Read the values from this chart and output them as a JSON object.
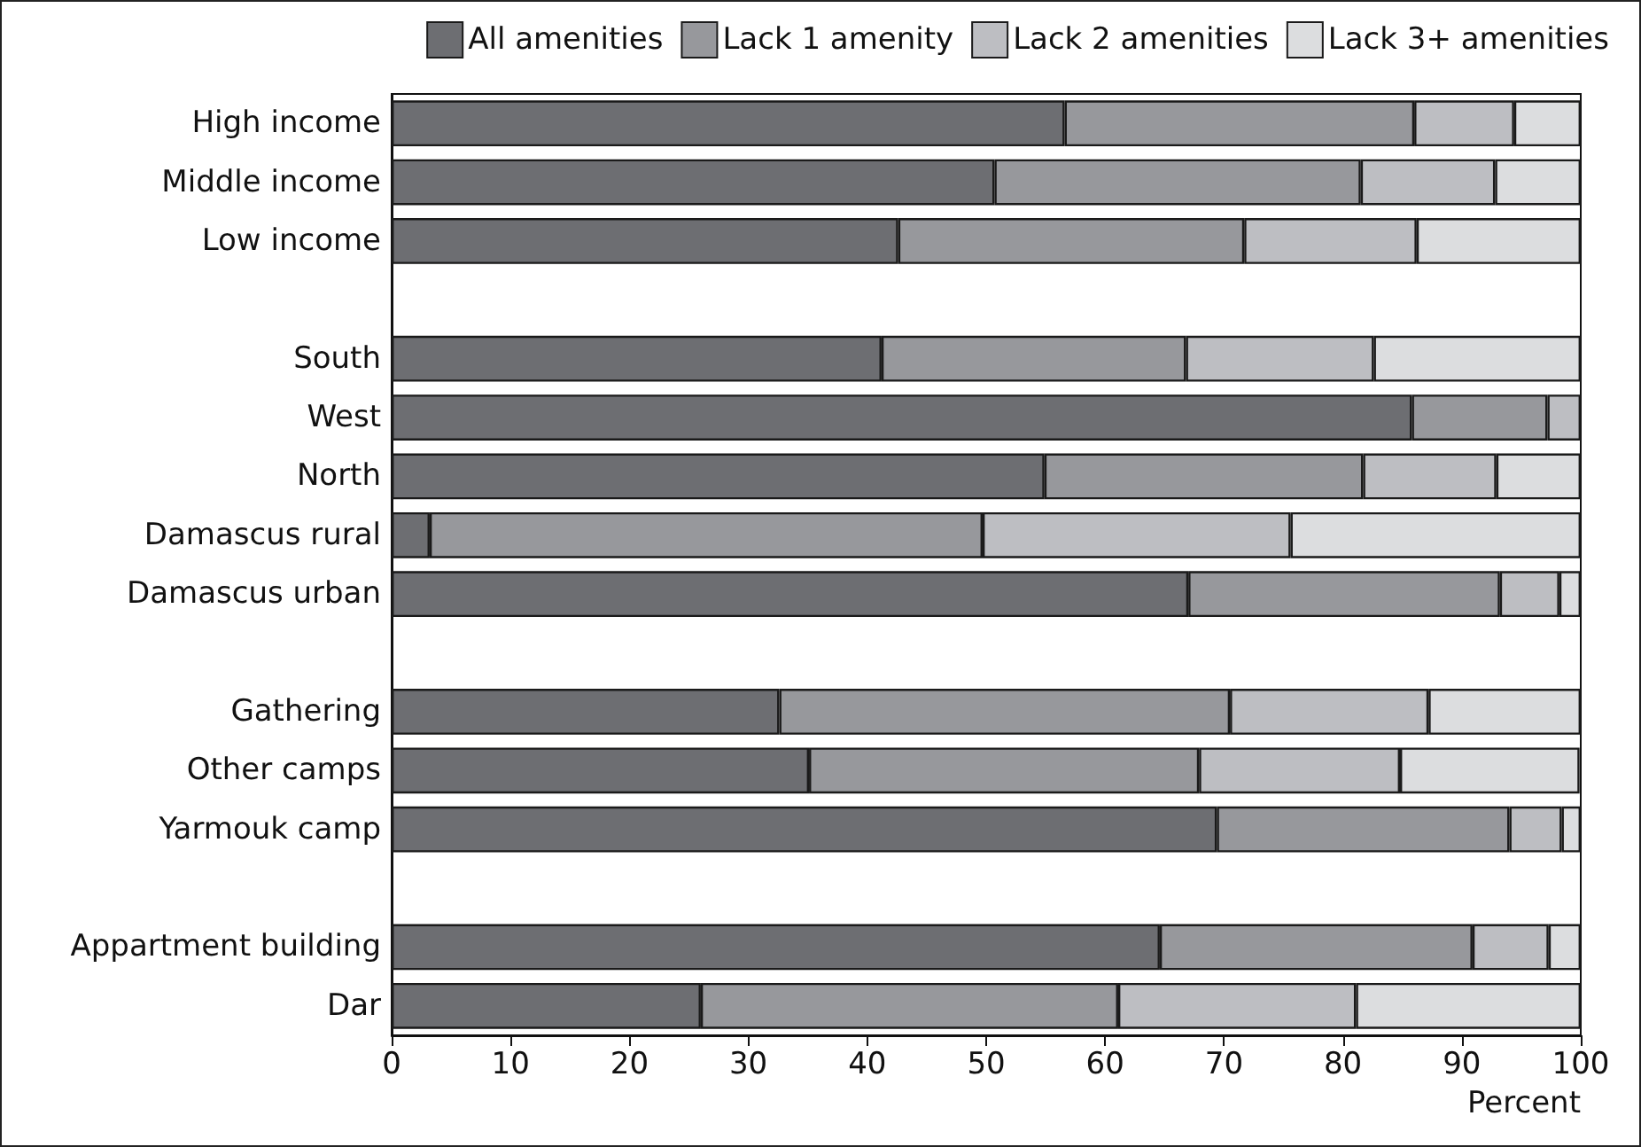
{
  "chart_data": {
    "type": "bar",
    "orientation": "horizontal",
    "stacked": true,
    "xlabel": "Percent",
    "categories": [
      "High income",
      "Middle income",
      "Low income",
      null,
      "South",
      "West",
      "North",
      "Damascus rural",
      "Damascus urban",
      null,
      "Gathering",
      "Other camps",
      "Yarmouk camp",
      null,
      "Appartment building",
      "Dar"
    ],
    "series": [
      {
        "name": "All amenities",
        "color": "#6d6e72",
        "values": [
          56.6,
          50.7,
          42.6,
          null,
          41.2,
          85.8,
          54.9,
          3.2,
          67.0,
          null,
          32.6,
          35.1,
          69.4,
          null,
          64.6,
          26.0
        ]
      },
      {
        "name": "Lack 1 amenity",
        "color": "#97989c",
        "values": [
          29.4,
          30.8,
          29.1,
          null,
          25.6,
          11.4,
          26.8,
          46.5,
          26.2,
          null,
          37.9,
          32.8,
          24.6,
          null,
          26.3,
          35.1
        ]
      },
      {
        "name": "Lack 2 amenities",
        "color": "#bdbec2",
        "values": [
          8.4,
          11.3,
          14.5,
          null,
          15.8,
          2.8,
          11.2,
          25.9,
          5.0,
          null,
          16.7,
          16.9,
          4.4,
          null,
          6.4,
          20.0
        ]
      },
      {
        "name": "Lack 3+ amenities",
        "color": "#dcdddf",
        "values": [
          5.6,
          7.2,
          13.8,
          null,
          17.4,
          null,
          7.1,
          24.4,
          1.8,
          null,
          12.8,
          15.1,
          1.6,
          null,
          2.7,
          18.9
        ]
      }
    ],
    "xlim": [
      0,
      100
    ],
    "xticks": [
      0,
      10,
      20,
      30,
      40,
      50,
      60,
      70,
      80,
      90,
      100
    ],
    "grid": false,
    "legend": "top right"
  }
}
